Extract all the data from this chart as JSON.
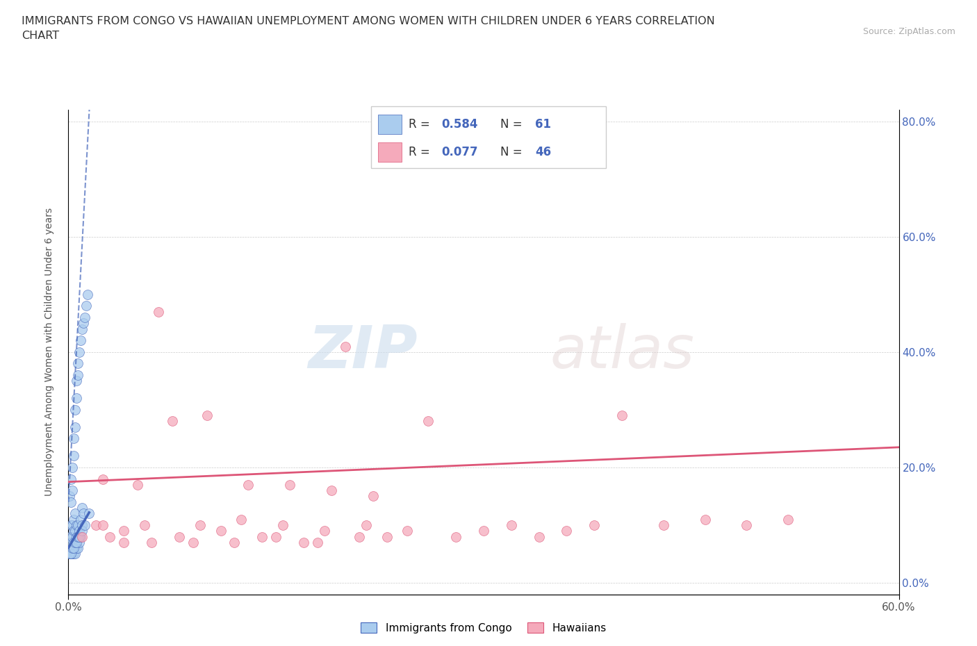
{
  "title": "IMMIGRANTS FROM CONGO VS HAWAIIAN UNEMPLOYMENT AMONG WOMEN WITH CHILDREN UNDER 6 YEARS CORRELATION\nCHART",
  "source": "Source: ZipAtlas.com",
  "ylabel": "Unemployment Among Women with Children Under 6 years",
  "xlim": [
    0,
    0.6
  ],
  "ylim": [
    -0.02,
    0.82
  ],
  "xticks": [
    0.0,
    0.6
  ],
  "xticklabels": [
    "0.0%",
    "60.0%"
  ],
  "yticks": [
    0.0,
    0.2,
    0.4,
    0.6,
    0.8
  ],
  "yticklabels": [
    "0.0%",
    "20.0%",
    "40.0%",
    "60.0%",
    "80.0%"
  ],
  "legend_R_blue": "0.584",
  "legend_N_blue": "61",
  "legend_R_pink": "0.077",
  "legend_N_pink": "46",
  "legend_label_blue": "Immigrants from Congo",
  "legend_label_pink": "Hawaiians",
  "blue_color": "#aaccee",
  "pink_color": "#f5aabb",
  "blue_line_color": "#4466bb",
  "pink_line_color": "#dd5577",
  "watermark_zip": "ZIP",
  "watermark_atlas": "atlas",
  "blue_scatter_x": [
    0.001,
    0.001,
    0.002,
    0.002,
    0.002,
    0.003,
    0.003,
    0.003,
    0.003,
    0.004,
    0.004,
    0.004,
    0.004,
    0.005,
    0.005,
    0.005,
    0.005,
    0.006,
    0.006,
    0.006,
    0.007,
    0.007,
    0.007,
    0.008,
    0.008,
    0.009,
    0.009,
    0.01,
    0.01,
    0.011,
    0.001,
    0.002,
    0.002,
    0.003,
    0.003,
    0.004,
    0.004,
    0.005,
    0.005,
    0.006,
    0.006,
    0.007,
    0.007,
    0.008,
    0.009,
    0.01,
    0.011,
    0.012,
    0.013,
    0.014,
    0.001,
    0.002,
    0.003,
    0.004,
    0.005,
    0.006,
    0.007,
    0.008,
    0.01,
    0.012,
    0.015
  ],
  "blue_scatter_y": [
    0.05,
    0.08,
    0.05,
    0.07,
    0.1,
    0.05,
    0.06,
    0.08,
    0.1,
    0.05,
    0.07,
    0.09,
    0.11,
    0.05,
    0.07,
    0.09,
    0.12,
    0.06,
    0.08,
    0.1,
    0.06,
    0.08,
    0.1,
    0.07,
    0.09,
    0.08,
    0.11,
    0.1,
    0.13,
    0.12,
    0.15,
    0.14,
    0.18,
    0.16,
    0.2,
    0.22,
    0.25,
    0.27,
    0.3,
    0.32,
    0.35,
    0.36,
    0.38,
    0.4,
    0.42,
    0.44,
    0.45,
    0.46,
    0.48,
    0.5,
    0.05,
    0.05,
    0.06,
    0.06,
    0.07,
    0.07,
    0.08,
    0.08,
    0.09,
    0.1,
    0.12
  ],
  "pink_scatter_x": [
    0.01,
    0.02,
    0.03,
    0.04,
    0.055,
    0.065,
    0.08,
    0.095,
    0.11,
    0.125,
    0.14,
    0.155,
    0.17,
    0.185,
    0.2,
    0.215,
    0.23,
    0.245,
    0.26,
    0.28,
    0.3,
    0.32,
    0.34,
    0.36,
    0.38,
    0.4,
    0.43,
    0.46,
    0.49,
    0.52,
    0.025,
    0.05,
    0.075,
    0.1,
    0.13,
    0.16,
    0.19,
    0.22,
    0.025,
    0.04,
    0.06,
    0.09,
    0.12,
    0.15,
    0.18,
    0.21
  ],
  "pink_scatter_y": [
    0.08,
    0.1,
    0.08,
    0.09,
    0.1,
    0.47,
    0.08,
    0.1,
    0.09,
    0.11,
    0.08,
    0.1,
    0.07,
    0.09,
    0.41,
    0.1,
    0.08,
    0.09,
    0.28,
    0.08,
    0.09,
    0.1,
    0.08,
    0.09,
    0.1,
    0.29,
    0.1,
    0.11,
    0.1,
    0.11,
    0.18,
    0.17,
    0.28,
    0.29,
    0.17,
    0.17,
    0.16,
    0.15,
    0.1,
    0.07,
    0.07,
    0.07,
    0.07,
    0.08,
    0.07,
    0.08
  ],
  "blue_trend_slope": 45.0,
  "blue_trend_intercept": 0.14,
  "pink_trend_slope": 0.1,
  "pink_trend_intercept": 0.175
}
